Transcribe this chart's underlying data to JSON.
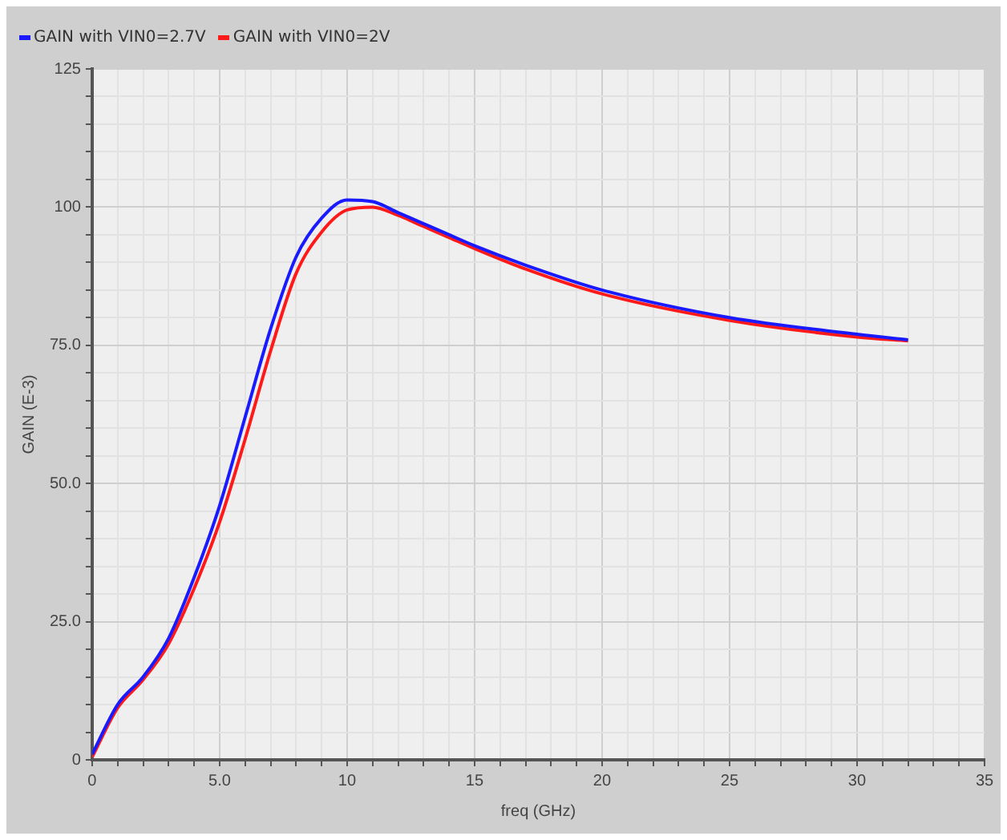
{
  "chart_data": {
    "type": "line",
    "xlabel": "freq (GHz)",
    "ylabel": "GAIN (E-3)",
    "x": [
      0,
      1,
      2,
      3,
      4,
      5,
      6,
      7,
      8,
      9,
      10,
      11,
      12,
      13,
      14,
      15,
      17,
      20,
      25,
      30,
      32
    ],
    "series": [
      {
        "name": "GAIN with VIN0=2.7V",
        "color": "#1a1aff",
        "values": [
          1,
          10,
          15,
          22,
          33,
          46,
          62,
          78,
          91,
          98,
          101.3,
          101,
          99,
          97,
          95,
          93,
          89.5,
          85,
          80,
          77,
          76
        ]
      },
      {
        "name": "GAIN with VIN0=2V",
        "color": "#ff1a1a",
        "values": [
          0.5,
          9.4,
          14.5,
          21,
          31,
          43,
          58,
          74,
          88,
          95.5,
          99.5,
          100,
          98.5,
          96.5,
          94.5,
          92.5,
          88.8,
          84.3,
          79.5,
          76.5,
          75.8
        ]
      }
    ],
    "xlim": [
      0,
      35
    ],
    "xticks": [
      0,
      {
        "value": 1,
        "label": null
      },
      {
        "value": 2,
        "label": null
      },
      {
        "value": 3,
        "label": null
      },
      {
        "value": 4,
        "label": null
      },
      {
        "value": 5,
        "label": "5.0"
      },
      {
        "value": 6,
        "label": null
      },
      {
        "value": 7,
        "label": null
      },
      {
        "value": 8,
        "label": null
      },
      {
        "value": 9,
        "label": null
      },
      10,
      {
        "value": 11,
        "label": null
      },
      {
        "value": 12,
        "label": null
      },
      {
        "value": 13,
        "label": null
      },
      {
        "value": 14,
        "label": null
      },
      15,
      {
        "value": 16,
        "label": null
      },
      {
        "value": 17,
        "label": null
      },
      {
        "value": 18,
        "label": null
      },
      {
        "value": 19,
        "label": null
      },
      20,
      {
        "value": 21,
        "label": null
      },
      {
        "value": 22,
        "label": null
      },
      {
        "value": 23,
        "label": null
      },
      {
        "value": 24,
        "label": null
      },
      25,
      {
        "value": 26,
        "label": null
      },
      {
        "value": 27,
        "label": null
      },
      {
        "value": 28,
        "label": null
      },
      {
        "value": 29,
        "label": null
      },
      30,
      {
        "value": 31,
        "label": null
      },
      {
        "value": 32,
        "label": null
      },
      {
        "value": 33,
        "label": null
      },
      {
        "value": 34,
        "label": null
      },
      35
    ],
    "ylim": [
      0,
      125
    ],
    "yticks": [
      0,
      {
        "value": 5,
        "label": null
      },
      {
        "value": 10,
        "label": null
      },
      {
        "value": 15,
        "label": null
      },
      {
        "value": 20,
        "label": null
      },
      {
        "value": 25,
        "label": "25.0"
      },
      {
        "value": 30,
        "label": null
      },
      {
        "value": 35,
        "label": null
      },
      {
        "value": 40,
        "label": null
      },
      {
        "value": 45,
        "label": null
      },
      {
        "value": 50,
        "label": "50.0"
      },
      {
        "value": 55,
        "label": null
      },
      {
        "value": 60,
        "label": null
      },
      {
        "value": 65,
        "label": null
      },
      {
        "value": 70,
        "label": null
      },
      {
        "value": 75,
        "label": "75.0"
      },
      {
        "value": 80,
        "label": null
      },
      {
        "value": 85,
        "label": null
      },
      {
        "value": 90,
        "label": null
      },
      {
        "value": 95,
        "label": null
      },
      100,
      {
        "value": 105,
        "label": null
      },
      {
        "value": 110,
        "label": null
      },
      {
        "value": 115,
        "label": null
      },
      {
        "value": 120,
        "label": null
      },
      125
    ],
    "grid": true,
    "legend": "top left",
    "marker": "none",
    "line_style": "solid"
  }
}
